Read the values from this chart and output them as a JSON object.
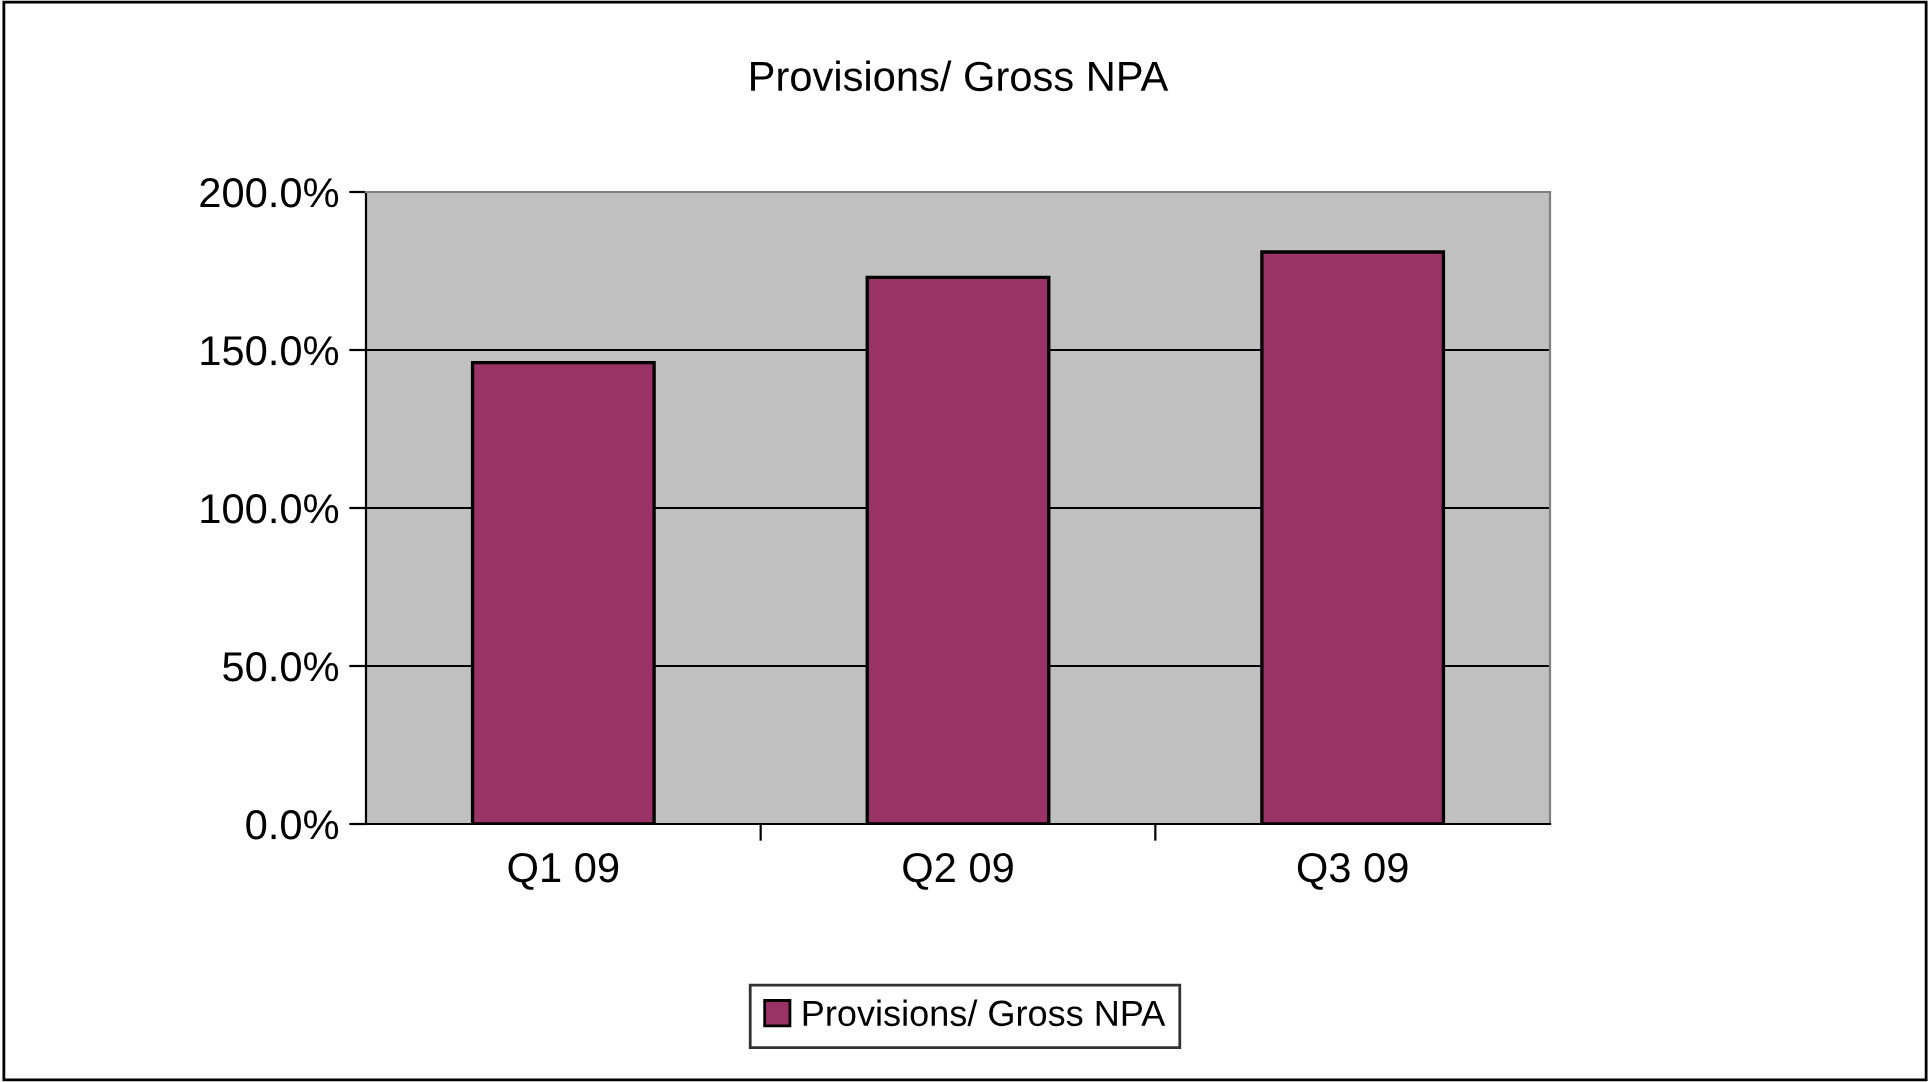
{
  "chart_data": {
    "type": "bar",
    "title": "Provisions/ Gross NPA",
    "categories": [
      "Q1 09",
      "Q2 09",
      "Q3 09"
    ],
    "series": [
      {
        "name": "Provisions/ Gross NPA",
        "color": "#993366",
        "values": [
          146,
          173,
          181
        ]
      }
    ],
    "ylim": [
      0,
      200
    ],
    "yticks": [
      {
        "value": 0,
        "label": "0.0%"
      },
      {
        "value": 50,
        "label": "50.0%"
      },
      {
        "value": 100,
        "label": "100.0%"
      },
      {
        "value": 150,
        "label": "150.0%"
      },
      {
        "value": 200,
        "label": "200.0%"
      }
    ],
    "grid": "y",
    "legend": "bottom"
  }
}
